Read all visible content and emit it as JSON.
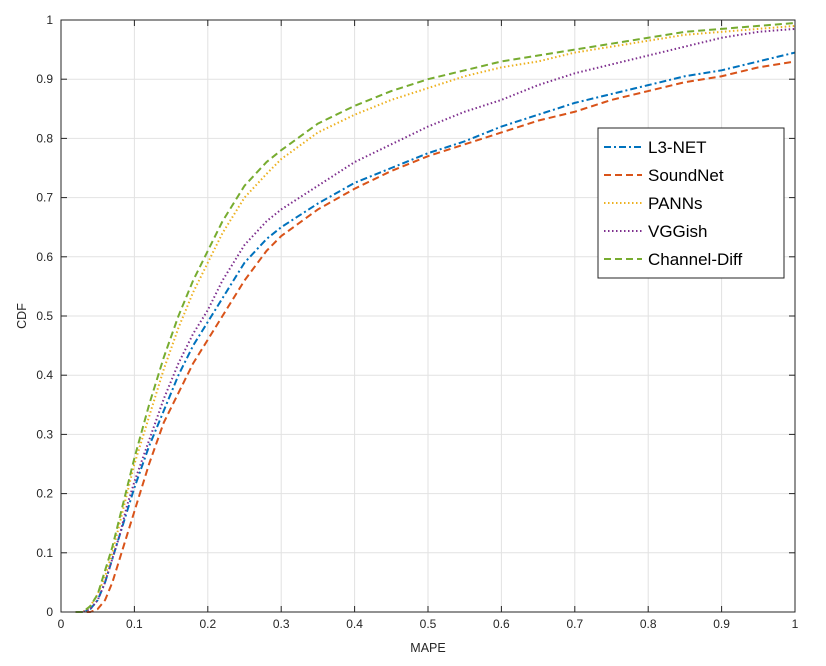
{
  "chart_data": {
    "type": "line",
    "title": "",
    "xlabel": "MAPE",
    "ylabel": "CDF",
    "xlim": [
      0,
      1
    ],
    "ylim": [
      0,
      1
    ],
    "xticks": [
      0,
      0.1,
      0.2,
      0.3,
      0.4,
      0.5,
      0.6,
      0.7,
      0.8,
      0.9,
      1
    ],
    "xtick_labels": [
      "0",
      "0.1",
      "0.2",
      "0.3",
      "0.4",
      "0.5",
      "0.6",
      "0.7",
      "0.8",
      "0.9",
      "1"
    ],
    "yticks": [
      0,
      0.1,
      0.2,
      0.3,
      0.4,
      0.5,
      0.6,
      0.7,
      0.8,
      0.9,
      1
    ],
    "ytick_labels": [
      "0",
      "0.1",
      "0.2",
      "0.3",
      "0.4",
      "0.5",
      "0.6",
      "0.7",
      "0.8",
      "0.9",
      "1"
    ],
    "grid": true,
    "legend_position": "top-right",
    "series": [
      {
        "name": "L3-NET",
        "color": "#0072BD",
        "style": "dashdot",
        "x": [
          0.02,
          0.03,
          0.04,
          0.05,
          0.06,
          0.07,
          0.08,
          0.09,
          0.1,
          0.12,
          0.14,
          0.16,
          0.18,
          0.2,
          0.22,
          0.25,
          0.28,
          0.3,
          0.35,
          0.4,
          0.45,
          0.5,
          0.55,
          0.6,
          0.65,
          0.7,
          0.75,
          0.8,
          0.85,
          0.9,
          0.95,
          1.0
        ],
        "y": [
          0,
          0.0,
          0.005,
          0.02,
          0.05,
          0.09,
          0.13,
          0.17,
          0.21,
          0.28,
          0.34,
          0.4,
          0.45,
          0.49,
          0.53,
          0.59,
          0.63,
          0.65,
          0.69,
          0.725,
          0.75,
          0.775,
          0.795,
          0.82,
          0.84,
          0.86,
          0.875,
          0.89,
          0.905,
          0.915,
          0.93,
          0.945
        ]
      },
      {
        "name": "SoundNet",
        "color": "#D95319",
        "style": "dash",
        "x": [
          0.02,
          0.03,
          0.04,
          0.05,
          0.06,
          0.07,
          0.08,
          0.09,
          0.1,
          0.12,
          0.14,
          0.16,
          0.18,
          0.2,
          0.22,
          0.25,
          0.28,
          0.3,
          0.35,
          0.4,
          0.45,
          0.5,
          0.55,
          0.6,
          0.65,
          0.7,
          0.75,
          0.8,
          0.85,
          0.9,
          0.95,
          1.0
        ],
        "y": [
          0,
          0.0,
          0.0,
          0.005,
          0.02,
          0.05,
          0.09,
          0.13,
          0.17,
          0.25,
          0.32,
          0.37,
          0.42,
          0.46,
          0.5,
          0.56,
          0.61,
          0.635,
          0.68,
          0.715,
          0.745,
          0.77,
          0.79,
          0.81,
          0.83,
          0.845,
          0.865,
          0.88,
          0.895,
          0.905,
          0.92,
          0.93
        ]
      },
      {
        "name": "PANNs",
        "color": "#EDB120",
        "style": "dot",
        "x": [
          0.02,
          0.03,
          0.04,
          0.05,
          0.06,
          0.07,
          0.08,
          0.09,
          0.1,
          0.12,
          0.14,
          0.16,
          0.18,
          0.2,
          0.22,
          0.25,
          0.28,
          0.3,
          0.35,
          0.4,
          0.45,
          0.5,
          0.55,
          0.6,
          0.65,
          0.7,
          0.75,
          0.8,
          0.85,
          0.9,
          0.95,
          1.0
        ],
        "y": [
          0,
          0.0,
          0.01,
          0.03,
          0.06,
          0.1,
          0.15,
          0.2,
          0.25,
          0.33,
          0.41,
          0.48,
          0.54,
          0.59,
          0.64,
          0.7,
          0.74,
          0.765,
          0.81,
          0.84,
          0.865,
          0.885,
          0.905,
          0.92,
          0.93,
          0.945,
          0.955,
          0.965,
          0.975,
          0.98,
          0.985,
          0.99
        ]
      },
      {
        "name": "VGGish",
        "color": "#7E2F8E",
        "style": "dot",
        "x": [
          0.02,
          0.03,
          0.04,
          0.05,
          0.06,
          0.07,
          0.08,
          0.09,
          0.1,
          0.12,
          0.14,
          0.16,
          0.18,
          0.2,
          0.22,
          0.25,
          0.28,
          0.3,
          0.35,
          0.4,
          0.45,
          0.5,
          0.55,
          0.6,
          0.65,
          0.7,
          0.75,
          0.8,
          0.85,
          0.9,
          0.95,
          1.0
        ],
        "y": [
          0,
          0.0,
          0.005,
          0.02,
          0.05,
          0.09,
          0.13,
          0.18,
          0.22,
          0.29,
          0.36,
          0.42,
          0.47,
          0.51,
          0.56,
          0.62,
          0.66,
          0.68,
          0.72,
          0.76,
          0.79,
          0.82,
          0.845,
          0.865,
          0.89,
          0.91,
          0.925,
          0.94,
          0.955,
          0.97,
          0.98,
          0.985
        ]
      },
      {
        "name": "Channel-Diff",
        "color": "#77AC30",
        "style": "dash",
        "x": [
          0.02,
          0.03,
          0.04,
          0.05,
          0.06,
          0.07,
          0.08,
          0.09,
          0.1,
          0.12,
          0.14,
          0.16,
          0.18,
          0.2,
          0.22,
          0.25,
          0.28,
          0.3,
          0.35,
          0.4,
          0.45,
          0.5,
          0.55,
          0.6,
          0.65,
          0.7,
          0.75,
          0.8,
          0.85,
          0.9,
          0.95,
          1.0
        ],
        "y": [
          0,
          0.0,
          0.01,
          0.03,
          0.07,
          0.11,
          0.16,
          0.21,
          0.26,
          0.35,
          0.43,
          0.5,
          0.56,
          0.61,
          0.66,
          0.72,
          0.76,
          0.78,
          0.825,
          0.855,
          0.88,
          0.9,
          0.915,
          0.93,
          0.94,
          0.95,
          0.96,
          0.97,
          0.98,
          0.985,
          0.99,
          0.995
        ]
      }
    ]
  }
}
